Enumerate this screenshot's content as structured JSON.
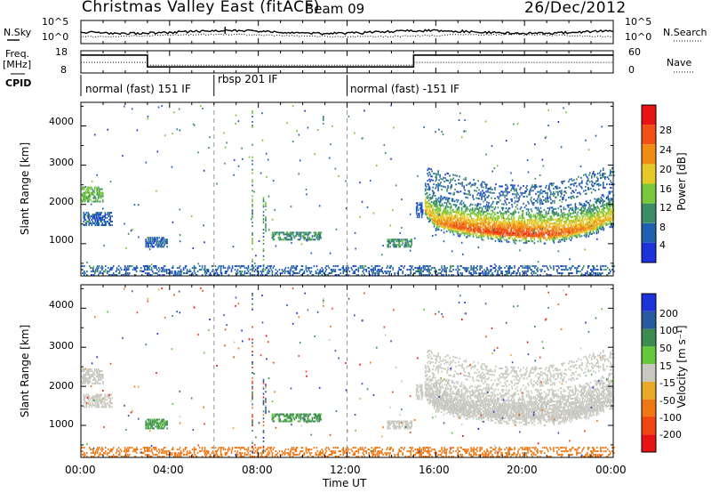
{
  "header": {
    "title": "Christmas Valley East (fitACF)",
    "beam": "Beam 09",
    "date": "26/Dec/2012"
  },
  "noise_panel": {
    "left_label": "N.Sky",
    "left_ticks": [
      "10^5",
      "10^0"
    ],
    "right_ticks": [
      "10^5",
      "10^0"
    ],
    "right_label": "N.Search"
  },
  "freq_panel": {
    "left_label_1": "Freq.",
    "left_label_2": "[MHz]",
    "left_ticks": [
      "18",
      "8"
    ],
    "right_ticks": [
      "60",
      "0"
    ],
    "right_label": "Nave"
  },
  "cpid": {
    "label": "CPID",
    "segments": [
      {
        "label": "normal (fast) 151 IF",
        "start_h": 0
      },
      {
        "label": "rbsp 201 IF",
        "start_h": 6
      },
      {
        "label": "normal (fast) -151 IF",
        "start_h": 12
      }
    ]
  },
  "x_axis": {
    "title": "Time UT",
    "ticks": [
      "00:00",
      "04:00",
      "08:00",
      "12:00",
      "16:00",
      "20:00",
      "00:00"
    ],
    "range_h": [
      0,
      24
    ]
  },
  "power_panel": {
    "ylabel": "Slant Range [km]",
    "y_ticks": [
      "1000",
      "2000",
      "3000",
      "4000"
    ],
    "colorbar_label": "Power [dB]",
    "colorbar_ticks": [
      "4",
      "8",
      "12",
      "16",
      "20",
      "24",
      "28"
    ],
    "colors": [
      "#1e32dc",
      "#2060b0",
      "#3c8c64",
      "#78c83c",
      "#e6c828",
      "#f08c14",
      "#f05014",
      "#e61414"
    ]
  },
  "velocity_panel": {
    "ylabel": "Slant Range [km]",
    "y_ticks": [
      "1000",
      "2000",
      "3000",
      "4000"
    ],
    "colorbar_label": "Velocity [m s⁻¹]",
    "colorbar_ticks": [
      "200",
      "100",
      "50",
      "15",
      "-15",
      "-50",
      "-100",
      "-200"
    ],
    "colors": [
      "#1e32dc",
      "#285aa0",
      "#3c8c50",
      "#64c83c",
      "#c8c8c0",
      "#e6aa28",
      "#f07814",
      "#f04614",
      "#e61414"
    ]
  },
  "chart_data": {
    "type": "heatmap",
    "x_unit": "hours UT",
    "y_unit": "km",
    "xlim": [
      0,
      24
    ],
    "ylim": [
      180,
      4600
    ],
    "mode_changes_h": [
      6,
      12
    ],
    "echo_regions": [
      {
        "t0": 0.0,
        "t1": 1.0,
        "r0": 2050,
        "r1": 2450,
        "power": 13,
        "velocity": 0
      },
      {
        "t0": 0.1,
        "t1": 1.4,
        "r0": 1450,
        "r1": 1800,
        "power": 6,
        "velocity": 0
      },
      {
        "t0": 2.9,
        "t1": 3.9,
        "r0": 900,
        "r1": 1150,
        "power": 6,
        "velocity": 40
      },
      {
        "t0": 8.6,
        "t1": 10.8,
        "r0": 1080,
        "r1": 1300,
        "power": 10,
        "velocity": 40
      },
      {
        "t0": 13.8,
        "t1": 14.9,
        "r0": 900,
        "r1": 1120,
        "power": 10,
        "velocity": 0
      },
      {
        "t0": 15.1,
        "t1": 15.4,
        "r0": 1650,
        "r1": 2050,
        "power": 5,
        "velocity": 0
      },
      {
        "t0": 0.0,
        "t1": 24.0,
        "r0": 180,
        "r1": 420,
        "power": 6,
        "velocity": -50
      }
    ],
    "main_echo_band": [
      {
        "t": 15.5,
        "r": 1850,
        "power": 20,
        "velocity": 0
      },
      {
        "t": 16.0,
        "r": 1500,
        "power": 22,
        "velocity": 0
      },
      {
        "t": 17.0,
        "r": 1380,
        "power": 26,
        "velocity": 0
      },
      {
        "t": 18.0,
        "r": 1280,
        "power": 27,
        "velocity": 0
      },
      {
        "t": 19.0,
        "r": 1230,
        "power": 28,
        "velocity": 0
      },
      {
        "t": 20.0,
        "r": 1200,
        "power": 28,
        "velocity": 0
      },
      {
        "t": 21.0,
        "r": 1180,
        "power": 27,
        "velocity": 0
      },
      {
        "t": 22.0,
        "r": 1260,
        "power": 25,
        "velocity": 0
      },
      {
        "t": 23.0,
        "r": 1380,
        "power": 22,
        "velocity": 0
      },
      {
        "t": 23.8,
        "r": 1600,
        "power": 20,
        "velocity": 0
      }
    ],
    "upper_arc": [
      {
        "t": 15.6,
        "r": 2650
      },
      {
        "t": 17.0,
        "r": 2450
      },
      {
        "t": 18.5,
        "r": 2250
      },
      {
        "t": 20.0,
        "r": 2200
      },
      {
        "t": 21.5,
        "r": 2280
      },
      {
        "t": 22.5,
        "r": 2450
      },
      {
        "t": 23.5,
        "r": 2650
      }
    ],
    "freq_mhz": [
      {
        "t0": 0,
        "t1": 3,
        "value": 17
      },
      {
        "t0": 3,
        "t1": 15,
        "value": 10
      },
      {
        "t0": 15,
        "t1": 24,
        "value": 17
      }
    ],
    "nave": [
      {
        "t0": 0,
        "t1": 3,
        "value": 28
      },
      {
        "t0": 3,
        "t1": 15,
        "value": 18
      },
      {
        "t0": 15,
        "t1": 24,
        "value": 28
      }
    ]
  }
}
